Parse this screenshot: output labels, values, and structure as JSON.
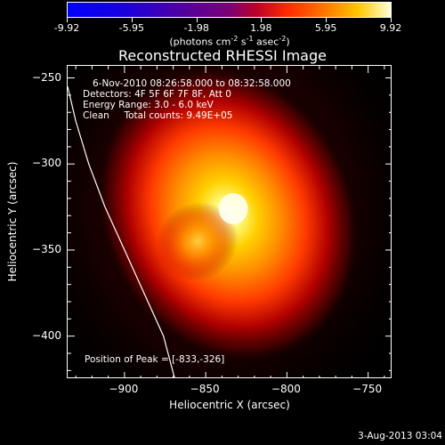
{
  "colorbar": {
    "tick_labels": [
      "-9.92",
      "-5.95",
      "-1.98",
      "1.98",
      "5.95",
      "9.92"
    ],
    "unit_text": {
      "prefix": "(photons cm",
      "exp1": "-2",
      "mid1": " s",
      "exp2": "-1",
      "mid2": " asec",
      "exp3": "-2",
      "suffix": ")"
    }
  },
  "title": "Reconstructed RHESSI Image",
  "info": {
    "time_range": "6-Nov-2010 08:26:58.000 to 08:32:58.000",
    "detectors": "Detectors: 4F 5F 6F 7F 8F, Att 0",
    "energy_range": "Energy Range: 3.0 - 6.0 keV",
    "clean_counts": "Clean     Total counts: 9.49E+05",
    "peak_position": "Position of Peak = [-833,-326]"
  },
  "timestamp": "3-Aug-2013 03:04",
  "chart_data": {
    "type": "heatmap",
    "title": "Reconstructed RHESSI Image",
    "xlabel": "Heliocentric X (arcsec)",
    "ylabel": "Heliocentric Y (arcsec)",
    "xlim": [
      -935,
      -735
    ],
    "ylim": [
      -425,
      -243
    ],
    "x_ticks": [
      -900,
      -850,
      -800,
      -750
    ],
    "y_ticks": [
      -250,
      -300,
      -350,
      -400
    ],
    "x_tick_labels": [
      "−900",
      "−850",
      "−800",
      "−750"
    ],
    "y_tick_labels": [
      "−250",
      "−300",
      "−350",
      "−400"
    ],
    "colorscale": {
      "min": -9.92,
      "max": 9.92,
      "ticks": [
        -9.92,
        -5.95,
        -1.98,
        1.98,
        5.95,
        9.92
      ],
      "colors": [
        "#0000ff",
        "#7a0076",
        "#ff2a00",
        "#ffc800",
        "#ffffd8"
      ]
    },
    "peak": {
      "x": -833,
      "y": -326,
      "value": 9.92
    },
    "source_blobs": [
      {
        "x": -833,
        "y": -326,
        "sigma": 22,
        "amplitude": 1.0
      },
      {
        "x": -855,
        "y": -345,
        "sigma": 16,
        "amplitude": 0.55
      }
    ],
    "background_halo": {
      "x": -840,
      "y": -325,
      "sigma": 60,
      "amplitude": 0.12
    },
    "limb_curve": {
      "x": [
        -935,
        -930,
        -922,
        -912,
        -900,
        -888,
        -876,
        -869
      ],
      "y": [
        -255,
        -275,
        -300,
        -325,
        -350,
        -375,
        -400,
        -425
      ]
    }
  }
}
